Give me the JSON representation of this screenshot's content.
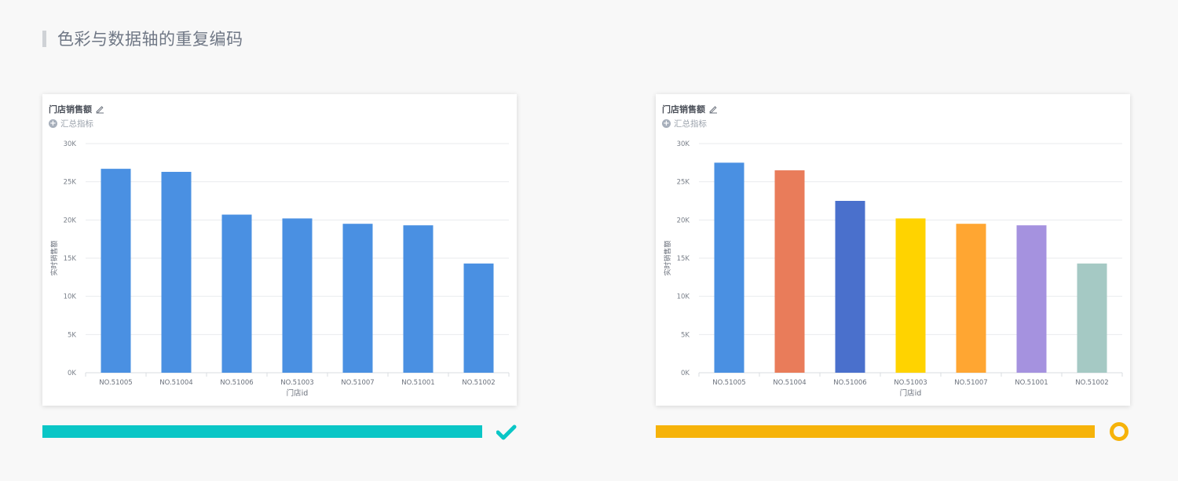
{
  "page": {
    "title": "色彩与数据轴的重复编码"
  },
  "cards": [
    {
      "title": "门店销售额",
      "summary_label": "汇总指标",
      "status_color": "#0AC6C6",
      "status_icon": "check-icon"
    },
    {
      "title": "门店销售额",
      "summary_label": "汇总指标",
      "status_color": "#F6B30A",
      "status_icon": "ring-icon"
    }
  ],
  "chart_data": [
    {
      "type": "bar",
      "title": "门店销售额",
      "xlabel": "门店id",
      "ylabel": "实时销售额",
      "categories": [
        "NO.51005",
        "NO.51004",
        "NO.51006",
        "NO.51003",
        "NO.51007",
        "NO.51001",
        "NO.51002"
      ],
      "values": [
        26700,
        26300,
        20700,
        20200,
        19500,
        19300,
        14300
      ],
      "ylim": [
        0,
        30000
      ],
      "yticks": [
        "0K",
        "5K",
        "10K",
        "15K",
        "20K",
        "25K",
        "30K"
      ],
      "grid": true,
      "colors": [
        "#4A90E2",
        "#4A90E2",
        "#4A90E2",
        "#4A90E2",
        "#4A90E2",
        "#4A90E2",
        "#4A90E2"
      ]
    },
    {
      "type": "bar",
      "title": "门店销售额",
      "xlabel": "门店id",
      "ylabel": "实时销售额",
      "categories": [
        "NO.51005",
        "NO.51004",
        "NO.51006",
        "NO.51003",
        "NO.51007",
        "NO.51001",
        "NO.51002"
      ],
      "values": [
        27500,
        26500,
        22500,
        20200,
        19500,
        19300,
        14300
      ],
      "ylim": [
        0,
        30000
      ],
      "yticks": [
        "0K",
        "5K",
        "10K",
        "15K",
        "20K",
        "25K",
        "30K"
      ],
      "grid": true,
      "colors": [
        "#4A90E2",
        "#E97C5A",
        "#4A70CC",
        "#FFD300",
        "#FFA632",
        "#A592DF",
        "#A5C9C4"
      ]
    }
  ]
}
